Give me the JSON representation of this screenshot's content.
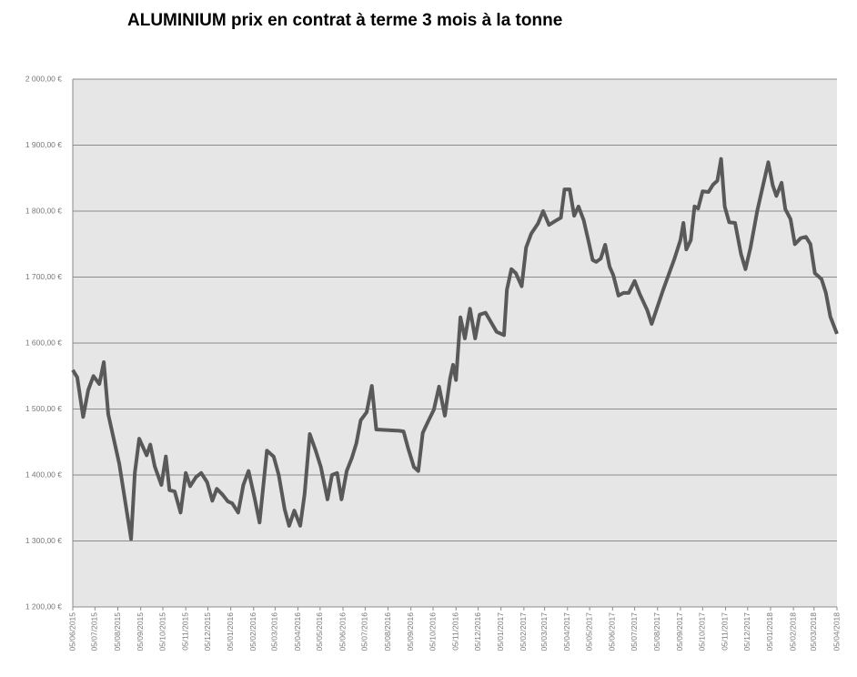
{
  "chart_data": {
    "type": "line",
    "title": "ALUMINIUM prix en contrat à terme 3 mois à la tonne",
    "color": "#595959",
    "grid": true,
    "x": [
      "2015-06-05",
      "2015-06-11",
      "2015-06-19",
      "2015-06-26",
      "2015-07-03",
      "2015-07-11",
      "2015-07-17",
      "2015-07-23",
      "2015-08-07",
      "2015-08-23",
      "2015-08-28",
      "2015-09-03",
      "2015-09-13",
      "2015-09-18",
      "2015-09-24",
      "2015-10-03",
      "2015-10-09",
      "2015-10-14",
      "2015-10-21",
      "2015-10-29",
      "2015-11-05",
      "2015-11-11",
      "2015-11-19",
      "2015-11-26",
      "2015-12-04",
      "2015-12-11",
      "2015-12-17",
      "2015-12-25",
      "2016-01-01",
      "2016-01-07",
      "2016-01-15",
      "2016-01-22",
      "2016-01-29",
      "2016-02-06",
      "2016-02-13",
      "2016-02-23",
      "2016-03-03",
      "2016-03-10",
      "2016-03-18",
      "2016-03-24",
      "2016-03-31",
      "2016-04-08",
      "2016-04-14",
      "2016-04-21",
      "2016-04-29",
      "2016-05-06",
      "2016-05-15",
      "2016-05-21",
      "2016-05-28",
      "2016-06-03",
      "2016-06-10",
      "2016-06-17",
      "2016-06-23",
      "2016-06-29",
      "2016-07-07",
      "2016-07-14",
      "2016-07-20",
      "2016-08-20",
      "2016-08-26",
      "2016-09-01",
      "2016-09-09",
      "2016-09-15",
      "2016-09-21",
      "2016-09-29",
      "2016-10-06",
      "2016-10-13",
      "2016-10-21",
      "2016-10-28",
      "2016-11-01",
      "2016-11-05",
      "2016-11-11",
      "2016-11-17",
      "2016-11-24",
      "2016-12-01",
      "2016-12-07",
      "2016-12-15",
      "2016-12-30",
      "2017-01-09",
      "2017-01-13",
      "2017-01-19",
      "2017-01-25",
      "2017-02-02",
      "2017-02-08",
      "2017-02-15",
      "2017-02-24",
      "2017-03-03",
      "2017-03-11",
      "2017-03-21",
      "2017-03-27",
      "2017-04-01",
      "2017-04-08",
      "2017-04-14",
      "2017-04-20",
      "2017-04-27",
      "2017-05-04",
      "2017-05-09",
      "2017-05-14",
      "2017-05-20",
      "2017-05-26",
      "2017-06-01",
      "2017-06-06",
      "2017-06-13",
      "2017-06-20",
      "2017-06-27",
      "2017-07-05",
      "2017-07-12",
      "2017-07-22",
      "2017-07-28",
      "2017-08-12",
      "2017-08-28",
      "2017-09-05",
      "2017-09-09",
      "2017-09-13",
      "2017-09-19",
      "2017-09-24",
      "2017-09-29",
      "2017-10-05",
      "2017-10-13",
      "2017-10-19",
      "2017-10-25",
      "2017-10-30",
      "2017-11-04",
      "2017-11-10",
      "2017-11-18",
      "2017-11-26",
      "2017-12-02",
      "2017-12-09",
      "2017-12-18",
      "2018-01-02",
      "2018-01-08",
      "2018-01-13",
      "2018-01-20",
      "2018-01-25",
      "2018-02-01",
      "2018-02-07",
      "2018-02-15",
      "2018-02-22",
      "2018-02-28",
      "2018-03-06",
      "2018-03-15",
      "2018-03-21",
      "2018-03-27",
      "2018-04-05"
    ],
    "values": [
      1559,
      1548,
      1488,
      1529,
      1550,
      1538,
      1571,
      1492,
      1417,
      1303,
      1403,
      1455,
      1430,
      1446,
      1413,
      1385,
      1428,
      1377,
      1375,
      1343,
      1403,
      1383,
      1397,
      1403,
      1389,
      1361,
      1379,
      1370,
      1360,
      1357,
      1343,
      1385,
      1406,
      1366,
      1328,
      1437,
      1428,
      1400,
      1348,
      1323,
      1346,
      1323,
      1371,
      1462,
      1437,
      1412,
      1363,
      1400,
      1403,
      1363,
      1406,
      1426,
      1448,
      1483,
      1495,
      1535,
      1469,
      1467,
      1466,
      1441,
      1412,
      1406,
      1464,
      1483,
      1499,
      1534,
      1490,
      1546,
      1567,
      1544,
      1639,
      1607,
      1652,
      1607,
      1643,
      1646,
      1617,
      1612,
      1681,
      1712,
      1706,
      1686,
      1745,
      1766,
      1781,
      1800,
      1779,
      1786,
      1790,
      1833,
      1833,
      1793,
      1807,
      1786,
      1752,
      1726,
      1723,
      1728,
      1749,
      1716,
      1703,
      1672,
      1676,
      1676,
      1694,
      1674,
      1650,
      1629,
      1679,
      1728,
      1756,
      1782,
      1742,
      1756,
      1807,
      1804,
      1830,
      1829,
      1840,
      1846,
      1879,
      1807,
      1783,
      1782,
      1735,
      1712,
      1745,
      1800,
      1874,
      1839,
      1823,
      1843,
      1803,
      1788,
      1750,
      1759,
      1761,
      1750,
      1706,
      1697,
      1676,
      1640,
      1614
    ],
    "xlim": [
      "2015-06-05",
      "2018-04-05"
    ],
    "xticks": [
      {
        "value": "2015-06-05",
        "label": "05/06/2015"
      },
      {
        "value": "2015-07-05",
        "label": "05/07/2015"
      },
      {
        "value": "2015-08-05",
        "label": "05/08/2015"
      },
      {
        "value": "2015-09-05",
        "label": "05/09/2015"
      },
      {
        "value": "2015-10-05",
        "label": "05/10/2015"
      },
      {
        "value": "2015-11-05",
        "label": "05/11/2015"
      },
      {
        "value": "2015-12-05",
        "label": "05/12/2015"
      },
      {
        "value": "2016-01-05",
        "label": "05/01/2016"
      },
      {
        "value": "2016-02-05",
        "label": "05/02/2016"
      },
      {
        "value": "2016-03-05",
        "label": "05/03/2016"
      },
      {
        "value": "2016-04-05",
        "label": "05/04/2016"
      },
      {
        "value": "2016-05-05",
        "label": "05/05/2016"
      },
      {
        "value": "2016-06-05",
        "label": "05/06/2016"
      },
      {
        "value": "2016-07-05",
        "label": "05/07/2016"
      },
      {
        "value": "2016-08-05",
        "label": "05/08/2016"
      },
      {
        "value": "2016-09-05",
        "label": "05/09/2016"
      },
      {
        "value": "2016-10-05",
        "label": "05/10/2016"
      },
      {
        "value": "2016-11-05",
        "label": "05/11/2016"
      },
      {
        "value": "2016-12-05",
        "label": "05/12/2016"
      },
      {
        "value": "2017-01-05",
        "label": "05/01/2017"
      },
      {
        "value": "2017-02-05",
        "label": "05/02/2017"
      },
      {
        "value": "2017-03-05",
        "label": "05/03/2017"
      },
      {
        "value": "2017-04-05",
        "label": "05/04/2017"
      },
      {
        "value": "2017-05-05",
        "label": "05/05/2017"
      },
      {
        "value": "2017-06-05",
        "label": "05/06/2017"
      },
      {
        "value": "2017-07-05",
        "label": "05/07/2017"
      },
      {
        "value": "2017-08-05",
        "label": "05/08/2017"
      },
      {
        "value": "2017-09-05",
        "label": "05/09/2017"
      },
      {
        "value": "2017-10-05",
        "label": "05/10/2017"
      },
      {
        "value": "2017-11-05",
        "label": "05/11/2017"
      },
      {
        "value": "2017-12-05",
        "label": "05/12/2017"
      },
      {
        "value": "2018-01-05",
        "label": "05/01/2018"
      },
      {
        "value": "2018-02-05",
        "label": "05/02/2018"
      },
      {
        "value": "2018-03-05",
        "label": "05/03/2018"
      },
      {
        "value": "2018-04-05",
        "label": "05/04/2018"
      }
    ],
    "ylim": [
      1200,
      2000
    ],
    "yticks": [
      {
        "value": 1200,
        "label": "1 200,00 €"
      },
      {
        "value": 1300,
        "label": "1 300,00 €"
      },
      {
        "value": 1400,
        "label": "1 400,00 €"
      },
      {
        "value": 1500,
        "label": "1 500,00 €"
      },
      {
        "value": 1600,
        "label": "1 600,00 €"
      },
      {
        "value": 1700,
        "label": "1 700,00 €"
      },
      {
        "value": 1800,
        "label": "1 800,00 €"
      },
      {
        "value": 1900,
        "label": "1 900,00 €"
      },
      {
        "value": 2000,
        "label": "2 000,00 €"
      }
    ]
  }
}
